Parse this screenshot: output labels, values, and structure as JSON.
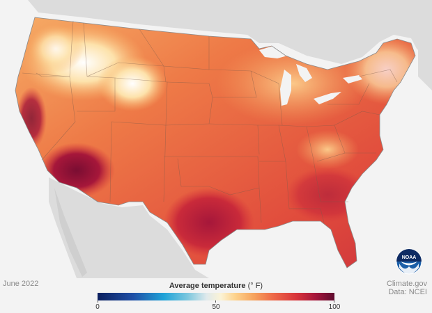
{
  "map": {
    "date_label": "June 2022",
    "credit_line1": "Climate.gov",
    "credit_line2": "Data: NCEI",
    "logo_text": "NOAA"
  },
  "legend": {
    "title": "Average temperature",
    "unit": "(° F)",
    "ticks": [
      "0",
      "50",
      "100"
    ],
    "min": 0,
    "max": 100
  },
  "colors": {
    "background": "#f3f3f3",
    "land_outside": "#d9d9d9",
    "hot_dark": "#7a0d32",
    "hot": "#c92a3a",
    "warm": "#ea5a3f",
    "mild": "#f7a15c",
    "cool": "#fce1a6",
    "cold": "#ffffff",
    "water": "#f3f3f3",
    "noaa_blue": "#1b5fa8",
    "noaa_navy": "#0e2b63"
  }
}
